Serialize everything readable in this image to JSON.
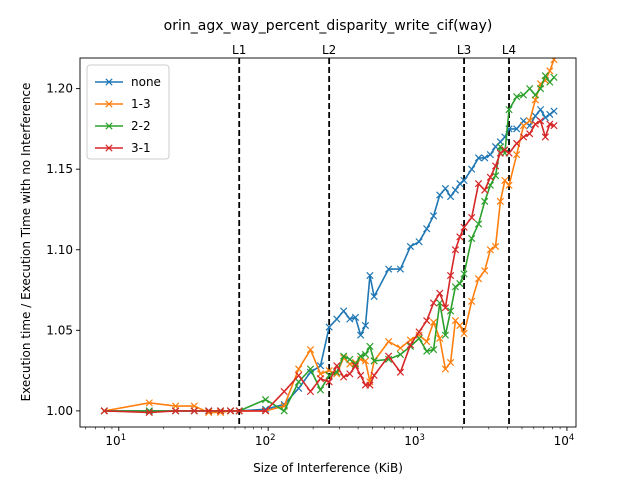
{
  "chart_data": {
    "type": "line",
    "title": "orin_agx_way_percent_disparity_write_cif(way)",
    "xlabel": "Size of Interference (KiB)",
    "ylabel": "Execution time / Execution Time with no Interference",
    "xscale": "log",
    "xlim": [
      5.5,
      11500
    ],
    "ylim": [
      0.99,
      1.219
    ],
    "yticks": [
      1.0,
      1.05,
      1.1,
      1.15,
      1.2
    ],
    "ytick_labels": [
      "1.00",
      "1.05",
      "1.10",
      "1.15",
      "1.20"
    ],
    "xticks": [
      10,
      100,
      1000,
      10000
    ],
    "xtick_base": "10",
    "xtick_exponents": [
      "1",
      "2",
      "3",
      "4"
    ],
    "grid": false,
    "legend_position": "upper-left",
    "vlines": [
      {
        "label": "L1",
        "x": 64
      },
      {
        "label": "L2",
        "x": 256
      },
      {
        "label": "L3",
        "x": 2048
      },
      {
        "label": "L4",
        "x": 4096
      }
    ],
    "series": [
      {
        "name": "none",
        "color": "#1f77b4",
        "points": [
          [
            8,
            1.0
          ],
          [
            16,
            1.0
          ],
          [
            24,
            1.0
          ],
          [
            32,
            1.0
          ],
          [
            40,
            1.0
          ],
          [
            48,
            1.0
          ],
          [
            56,
            1.0
          ],
          [
            64,
            1.0
          ],
          [
            96,
            1.001
          ],
          [
            128,
            1.004
          ],
          [
            160,
            1.014
          ],
          [
            192,
            1.024
          ],
          [
            224,
            1.028
          ],
          [
            256,
            1.052
          ],
          [
            288,
            1.057
          ],
          [
            320,
            1.062
          ],
          [
            352,
            1.057
          ],
          [
            384,
            1.058
          ],
          [
            416,
            1.047
          ],
          [
            448,
            1.053
          ],
          [
            480,
            1.084
          ],
          [
            512,
            1.071
          ],
          [
            640,
            1.088
          ],
          [
            768,
            1.088
          ],
          [
            896,
            1.102
          ],
          [
            1024,
            1.105
          ],
          [
            1152,
            1.113
          ],
          [
            1280,
            1.121
          ],
          [
            1408,
            1.134
          ],
          [
            1536,
            1.138
          ],
          [
            1664,
            1.133
          ],
          [
            1792,
            1.137
          ],
          [
            1920,
            1.141
          ],
          [
            2048,
            1.143
          ],
          [
            2304,
            1.15
          ],
          [
            2560,
            1.157
          ],
          [
            2816,
            1.157
          ],
          [
            3072,
            1.159
          ],
          [
            3328,
            1.164
          ],
          [
            3584,
            1.167
          ],
          [
            3840,
            1.17
          ],
          [
            4096,
            1.175
          ],
          [
            4608,
            1.175
          ],
          [
            5120,
            1.18
          ],
          [
            5632,
            1.177
          ],
          [
            6144,
            1.183
          ],
          [
            6656,
            1.187
          ],
          [
            7168,
            1.182
          ],
          [
            7680,
            1.184
          ],
          [
            8192,
            1.186
          ]
        ]
      },
      {
        "name": "1-3",
        "color": "#ff7f0e",
        "points": [
          [
            8,
            1.0
          ],
          [
            16,
            1.005
          ],
          [
            24,
            1.003
          ],
          [
            32,
            1.003
          ],
          [
            40,
            0.999
          ],
          [
            48,
            0.999
          ],
          [
            56,
            1.0
          ],
          [
            64,
            1.0
          ],
          [
            96,
            1.0
          ],
          [
            128,
            1.003
          ],
          [
            160,
            1.026
          ],
          [
            192,
            1.038
          ],
          [
            224,
            1.023
          ],
          [
            256,
            1.025
          ],
          [
            288,
            1.023
          ],
          [
            320,
            1.033
          ],
          [
            352,
            1.029
          ],
          [
            384,
            1.03
          ],
          [
            416,
            1.032
          ],
          [
            448,
            1.031
          ],
          [
            480,
            1.018
          ],
          [
            512,
            1.031
          ],
          [
            640,
            1.043
          ],
          [
            768,
            1.039
          ],
          [
            896,
            1.044
          ],
          [
            1024,
            1.047
          ],
          [
            1152,
            1.043
          ],
          [
            1280,
            1.055
          ],
          [
            1408,
            1.045
          ],
          [
            1536,
            1.026
          ],
          [
            1664,
            1.03
          ],
          [
            1792,
            1.056
          ],
          [
            1920,
            1.053
          ],
          [
            2048,
            1.048
          ],
          [
            2304,
            1.068
          ],
          [
            2560,
            1.082
          ],
          [
            2816,
            1.087
          ],
          [
            3072,
            1.1
          ],
          [
            3328,
            1.102
          ],
          [
            3584,
            1.13
          ],
          [
            3840,
            1.143
          ],
          [
            4096,
            1.14
          ],
          [
            4608,
            1.159
          ],
          [
            5120,
            1.177
          ],
          [
            5632,
            1.18
          ],
          [
            6144,
            1.193
          ],
          [
            6656,
            1.203
          ],
          [
            7168,
            1.205
          ],
          [
            7680,
            1.211
          ],
          [
            8192,
            1.218
          ]
        ]
      },
      {
        "name": "2-2",
        "color": "#2ca02c",
        "points": [
          [
            8,
            1.0
          ],
          [
            16,
            1.0
          ],
          [
            24,
            1.0
          ],
          [
            32,
            1.0
          ],
          [
            40,
            1.0
          ],
          [
            48,
            1.0
          ],
          [
            56,
            1.0
          ],
          [
            64,
            1.0
          ],
          [
            96,
            1.007
          ],
          [
            128,
            1.0
          ],
          [
            160,
            1.018
          ],
          [
            192,
            1.026
          ],
          [
            224,
            1.013
          ],
          [
            256,
            1.022
          ],
          [
            288,
            1.024
          ],
          [
            320,
            1.034
          ],
          [
            352,
            1.032
          ],
          [
            384,
            1.029
          ],
          [
            416,
            1.034
          ],
          [
            448,
            1.035
          ],
          [
            480,
            1.04
          ],
          [
            512,
            1.031
          ],
          [
            640,
            1.032
          ],
          [
            768,
            1.035
          ],
          [
            896,
            1.04
          ],
          [
            1024,
            1.045
          ],
          [
            1152,
            1.037
          ],
          [
            1280,
            1.038
          ],
          [
            1408,
            1.067
          ],
          [
            1536,
            1.047
          ],
          [
            1664,
            1.062
          ],
          [
            1792,
            1.077
          ],
          [
            1920,
            1.079
          ],
          [
            2048,
            1.085
          ],
          [
            2304,
            1.107
          ],
          [
            2560,
            1.116
          ],
          [
            2816,
            1.13
          ],
          [
            3072,
            1.14
          ],
          [
            3328,
            1.146
          ],
          [
            3584,
            1.164
          ],
          [
            3840,
            1.16
          ],
          [
            4096,
            1.187
          ],
          [
            4608,
            1.195
          ],
          [
            5120,
            1.196
          ],
          [
            5632,
            1.2
          ],
          [
            6144,
            1.196
          ],
          [
            6656,
            1.2
          ],
          [
            7168,
            1.208
          ],
          [
            7680,
            1.204
          ],
          [
            8192,
            1.207
          ]
        ]
      },
      {
        "name": "3-1",
        "color": "#d62728",
        "points": [
          [
            8,
            1.0
          ],
          [
            16,
            0.999
          ],
          [
            24,
            1.0
          ],
          [
            32,
            1.0
          ],
          [
            40,
            1.0
          ],
          [
            48,
            1.0
          ],
          [
            56,
            1.0
          ],
          [
            64,
            1.0
          ],
          [
            96,
            1.0
          ],
          [
            128,
            1.012
          ],
          [
            160,
            1.022
          ],
          [
            192,
            1.012
          ],
          [
            224,
            1.02
          ],
          [
            256,
            1.018
          ],
          [
            288,
            1.028
          ],
          [
            320,
            1.021
          ],
          [
            352,
            1.023
          ],
          [
            384,
            1.028
          ],
          [
            416,
            1.022
          ],
          [
            448,
            1.016
          ],
          [
            480,
            1.016
          ],
          [
            512,
            1.022
          ],
          [
            640,
            1.034
          ],
          [
            768,
            1.024
          ],
          [
            896,
            1.041
          ],
          [
            1024,
            1.049
          ],
          [
            1152,
            1.056
          ],
          [
            1280,
            1.067
          ],
          [
            1408,
            1.073
          ],
          [
            1536,
            1.064
          ],
          [
            1664,
            1.084
          ],
          [
            1792,
            1.1
          ],
          [
            1920,
            1.108
          ],
          [
            2048,
            1.114
          ],
          [
            2304,
            1.12
          ],
          [
            2560,
            1.141
          ],
          [
            2816,
            1.137
          ],
          [
            3072,
            1.145
          ],
          [
            3328,
            1.152
          ],
          [
            3584,
            1.16
          ],
          [
            3840,
            1.162
          ],
          [
            4096,
            1.16
          ],
          [
            4608,
            1.166
          ],
          [
            5120,
            1.17
          ],
          [
            5632,
            1.172
          ],
          [
            6144,
            1.178
          ],
          [
            6656,
            1.18
          ],
          [
            7168,
            1.17
          ],
          [
            7680,
            1.178
          ],
          [
            8192,
            1.177
          ]
        ]
      }
    ]
  }
}
